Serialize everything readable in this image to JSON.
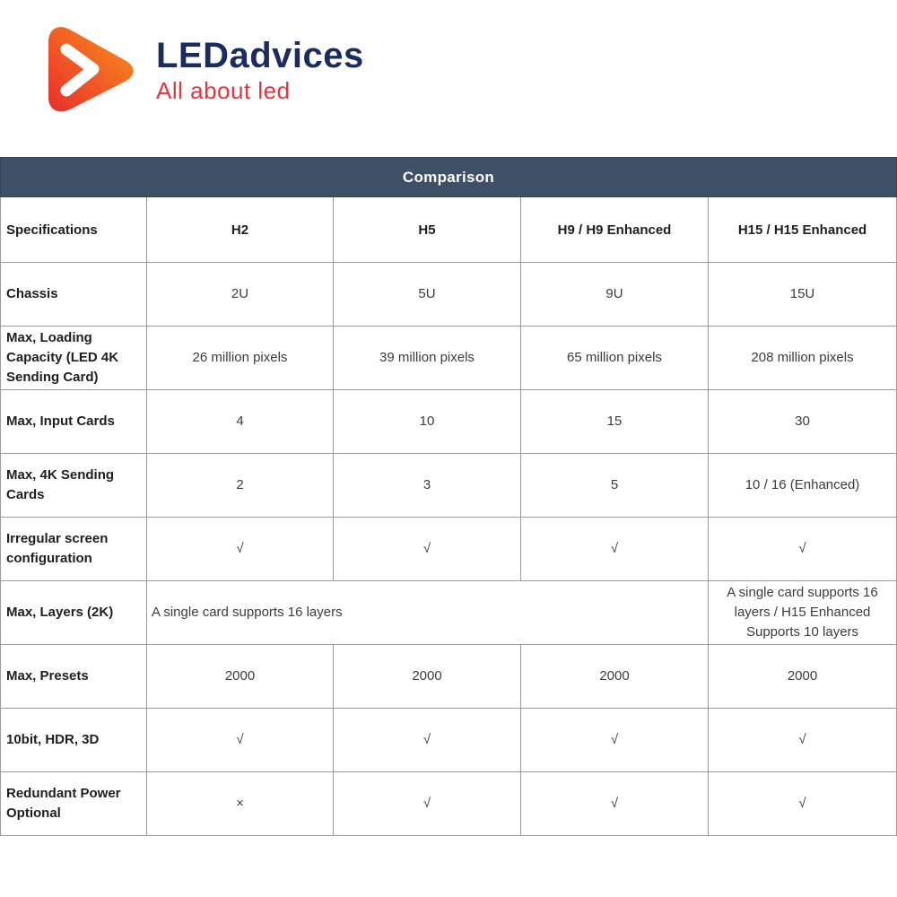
{
  "logo": {
    "title": "LEDadvices",
    "subtitle": "All about led",
    "icon": "play-arrow-logo"
  },
  "colors": {
    "table_header_bg": "#3e5066",
    "logo_navy": "#1d2c5e",
    "logo_red": "#e8333c",
    "logo_orange": "#f7941d",
    "table_border": "#999999"
  },
  "table": {
    "title": "Comparison",
    "columns": [
      "Specifications",
      "H2",
      "H5",
      "H9 / H9 Enhanced",
      "H15 / H15 Enhanced"
    ],
    "rows": [
      {
        "label": "Chassis",
        "cells": [
          {
            "text": "2U"
          },
          {
            "text": "5U"
          },
          {
            "text": "9U"
          },
          {
            "text": "15U"
          }
        ]
      },
      {
        "label": "Max, Loading Capacity (LED 4K Sending Card)",
        "cells": [
          {
            "text": "26 million pixels"
          },
          {
            "text": "39 million pixels"
          },
          {
            "text": "65 million pixels"
          },
          {
            "text": "208 million pixels"
          }
        ]
      },
      {
        "label": "Max, Input Cards",
        "cells": [
          {
            "text": "4"
          },
          {
            "text": "10"
          },
          {
            "text": "15"
          },
          {
            "text": "30"
          }
        ]
      },
      {
        "label": "Max, 4K Sending Cards",
        "cells": [
          {
            "text": "2"
          },
          {
            "text": "3"
          },
          {
            "text": "5"
          },
          {
            "text": "10 / 16 (Enhanced)"
          }
        ]
      },
      {
        "label": "Irregular screen configuration",
        "cells": [
          {
            "text": "√"
          },
          {
            "text": "√"
          },
          {
            "text": "√"
          },
          {
            "text": "√"
          }
        ]
      },
      {
        "label": "Max, Layers (2K)",
        "cells": [
          {
            "text": "A single card supports 16 layers",
            "colspan": 3,
            "align": "left"
          },
          {
            "text": "A single card supports 16 layers / H15 Enhanced Supports 10 layers"
          }
        ]
      },
      {
        "label": "Max, Presets",
        "cells": [
          {
            "text": "2000"
          },
          {
            "text": "2000"
          },
          {
            "text": "2000"
          },
          {
            "text": "2000"
          }
        ]
      },
      {
        "label": "10bit, HDR, 3D",
        "cells": [
          {
            "text": "√"
          },
          {
            "text": "√"
          },
          {
            "text": "√"
          },
          {
            "text": "√"
          }
        ]
      },
      {
        "label": "Redundant Power Optional",
        "cells": [
          {
            "text": "×"
          },
          {
            "text": "√"
          },
          {
            "text": "√"
          },
          {
            "text": "√"
          }
        ]
      }
    ]
  }
}
